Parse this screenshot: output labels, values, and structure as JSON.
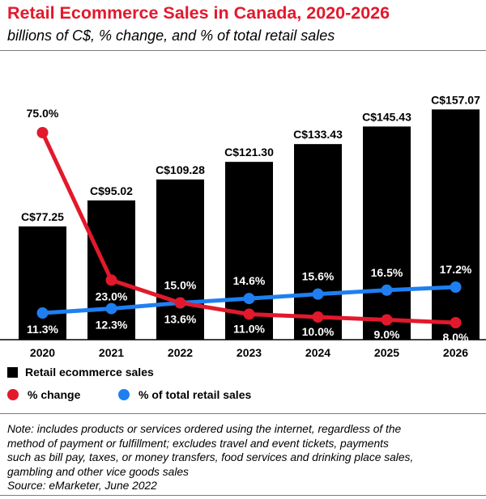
{
  "header": {
    "title": "Retail Ecommerce Sales in Canada, 2020-2026",
    "subtitle": "billions of C$, % change, and % of total retail sales"
  },
  "colors": {
    "title": "#e2192c",
    "bars": "#000000",
    "pct_change": "#e2192c",
    "pct_total": "#1f7ff0"
  },
  "chart_data": {
    "type": "bar",
    "title": "Retail Ecommerce Sales in Canada, 2020-2026",
    "subtitle": "billions of C$, % change, and % of total retail sales",
    "categories": [
      "2020",
      "2021",
      "2022",
      "2023",
      "2024",
      "2025",
      "2026"
    ],
    "bar_series": {
      "name": "Retail ecommerce sales",
      "values": [
        77.25,
        95.02,
        109.28,
        121.3,
        133.43,
        145.43,
        157.07
      ],
      "labels": [
        "C$77.25",
        "C$95.02",
        "C$109.28",
        "C$121.30",
        "C$133.43",
        "C$145.43",
        "C$157.07"
      ]
    },
    "line_series": [
      {
        "name": "% change",
        "values": [
          75.0,
          23.0,
          15.0,
          11.0,
          10.0,
          9.0,
          8.0
        ],
        "labels": [
          "75.0%",
          "23.0%",
          "15.0%",
          "11.0%",
          "10.0%",
          "9.0%",
          "8.0%"
        ]
      },
      {
        "name": "% of total retail sales",
        "values": [
          11.3,
          12.3,
          13.6,
          14.6,
          15.6,
          16.5,
          17.2
        ],
        "labels": [
          "11.3%",
          "12.3%",
          "13.6%",
          "14.6%",
          "15.6%",
          "16.5%",
          "17.2%"
        ]
      }
    ],
    "legend_position": "bottom-left"
  },
  "legend": {
    "bars": "Retail ecommerce sales",
    "pct_change": "% change",
    "pct_total": "% of total retail sales"
  },
  "note": {
    "lines": [
      "Note: includes products or services ordered using the internet, regardless of the",
      "method of payment or fulfillment; excludes travel and event tickets, payments",
      "such as bill pay, taxes, or money transfers, food services and drinking place sales,",
      "gambling and other vice goods sales"
    ],
    "source": "Source: eMarketer, June 2022"
  }
}
